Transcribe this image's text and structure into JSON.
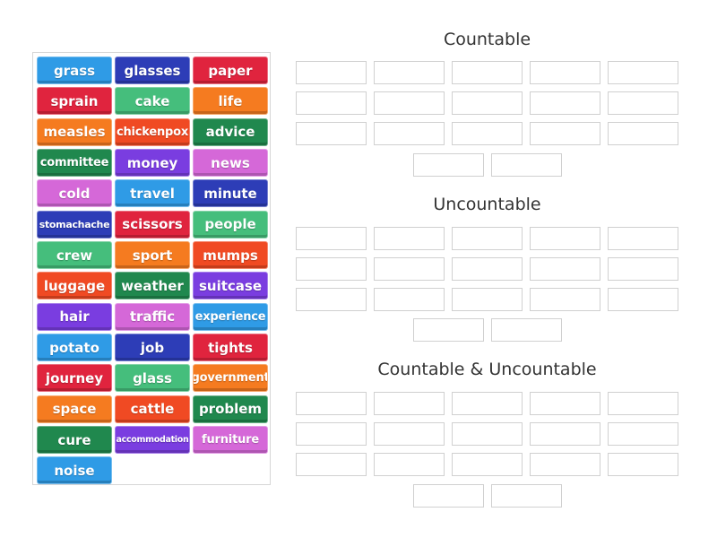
{
  "tiles": [
    {
      "label": "grass",
      "color": "#2f9be6"
    },
    {
      "label": "glasses",
      "color": "#2d3db7"
    },
    {
      "label": "paper",
      "color": "#e0243e"
    },
    {
      "label": "sprain",
      "color": "#e0243e"
    },
    {
      "label": "cake",
      "color": "#45be7c"
    },
    {
      "label": "life",
      "color": "#f57b20"
    },
    {
      "label": "measles",
      "color": "#f57b20"
    },
    {
      "label": "chickenpox",
      "color": "#f04a23"
    },
    {
      "label": "advice",
      "color": "#20884e"
    },
    {
      "label": "committee",
      "color": "#20884e"
    },
    {
      "label": "money",
      "color": "#7a3de0"
    },
    {
      "label": "news",
      "color": "#d568d8"
    },
    {
      "label": "cold",
      "color": "#d568d8"
    },
    {
      "label": "travel",
      "color": "#2f9be6"
    },
    {
      "label": "minute",
      "color": "#2d3db7"
    },
    {
      "label": "stomachache",
      "color": "#2d3db7"
    },
    {
      "label": "scissors",
      "color": "#e0243e"
    },
    {
      "label": "people",
      "color": "#45be7c"
    },
    {
      "label": "crew",
      "color": "#45be7c"
    },
    {
      "label": "sport",
      "color": "#f57b20"
    },
    {
      "label": "mumps",
      "color": "#f04a23"
    },
    {
      "label": "luggage",
      "color": "#f04a23"
    },
    {
      "label": "weather",
      "color": "#20884e"
    },
    {
      "label": "suitcase",
      "color": "#7a3de0"
    },
    {
      "label": "hair",
      "color": "#7a3de0"
    },
    {
      "label": "traffic",
      "color": "#d568d8"
    },
    {
      "label": "experience",
      "color": "#2f9be6"
    },
    {
      "label": "potato",
      "color": "#2f9be6"
    },
    {
      "label": "job",
      "color": "#2d3db7"
    },
    {
      "label": "tights",
      "color": "#e0243e"
    },
    {
      "label": "journey",
      "color": "#e0243e"
    },
    {
      "label": "glass",
      "color": "#45be7c"
    },
    {
      "label": "government",
      "color": "#f57b20"
    },
    {
      "label": "space",
      "color": "#f57b20"
    },
    {
      "label": "cattle",
      "color": "#f04a23"
    },
    {
      "label": "problem",
      "color": "#20884e"
    },
    {
      "label": "cure",
      "color": "#20884e"
    },
    {
      "label": "accommodation",
      "color": "#7a3de0"
    },
    {
      "label": "furniture",
      "color": "#d568d8"
    },
    {
      "label": "noise",
      "color": "#2f9be6"
    }
  ],
  "groups": [
    {
      "title": "Countable"
    },
    {
      "title": "Uncountable"
    },
    {
      "title": "Countable & Uncountable"
    }
  ]
}
